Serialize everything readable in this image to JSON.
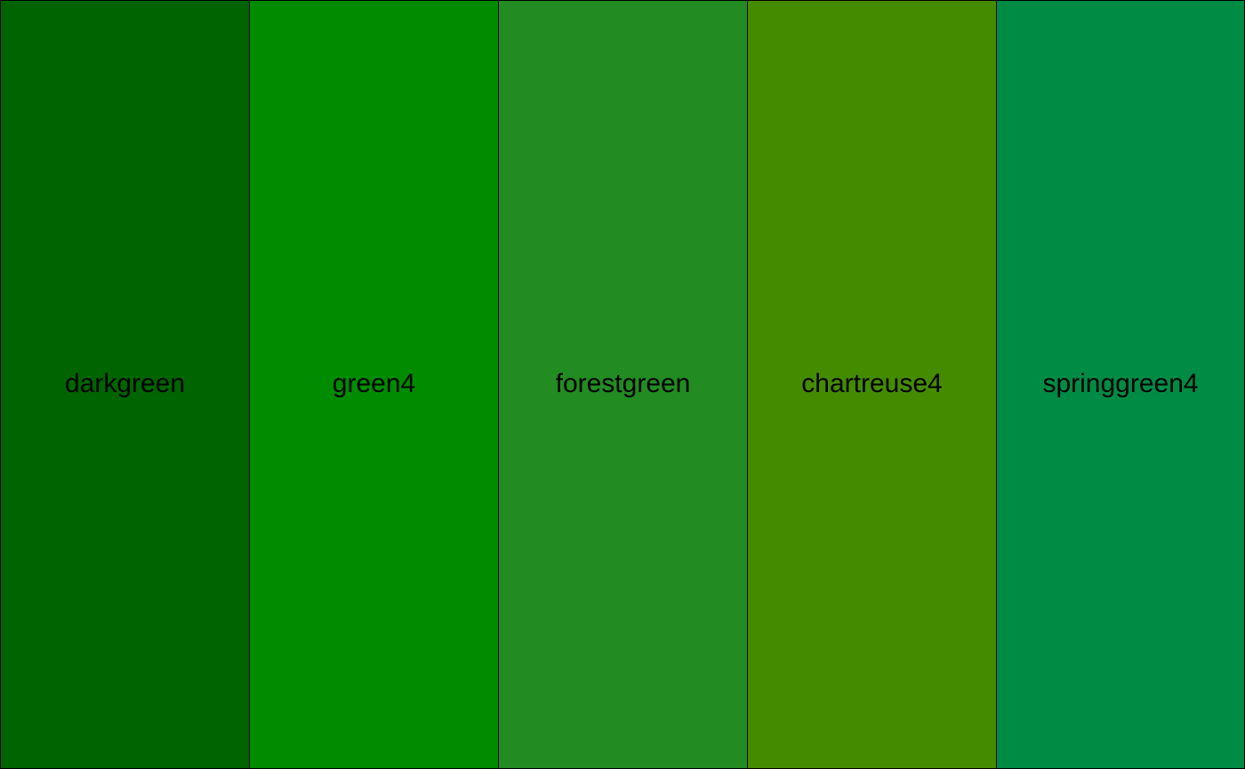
{
  "swatches": [
    {
      "label": "darkgreen",
      "color": "#006400"
    },
    {
      "label": "green4",
      "color": "#008b00"
    },
    {
      "label": "forestgreen",
      "color": "#228b22"
    },
    {
      "label": "chartreuse4",
      "color": "#458b00"
    },
    {
      "label": "springgreen4",
      "color": "#008b45"
    }
  ]
}
